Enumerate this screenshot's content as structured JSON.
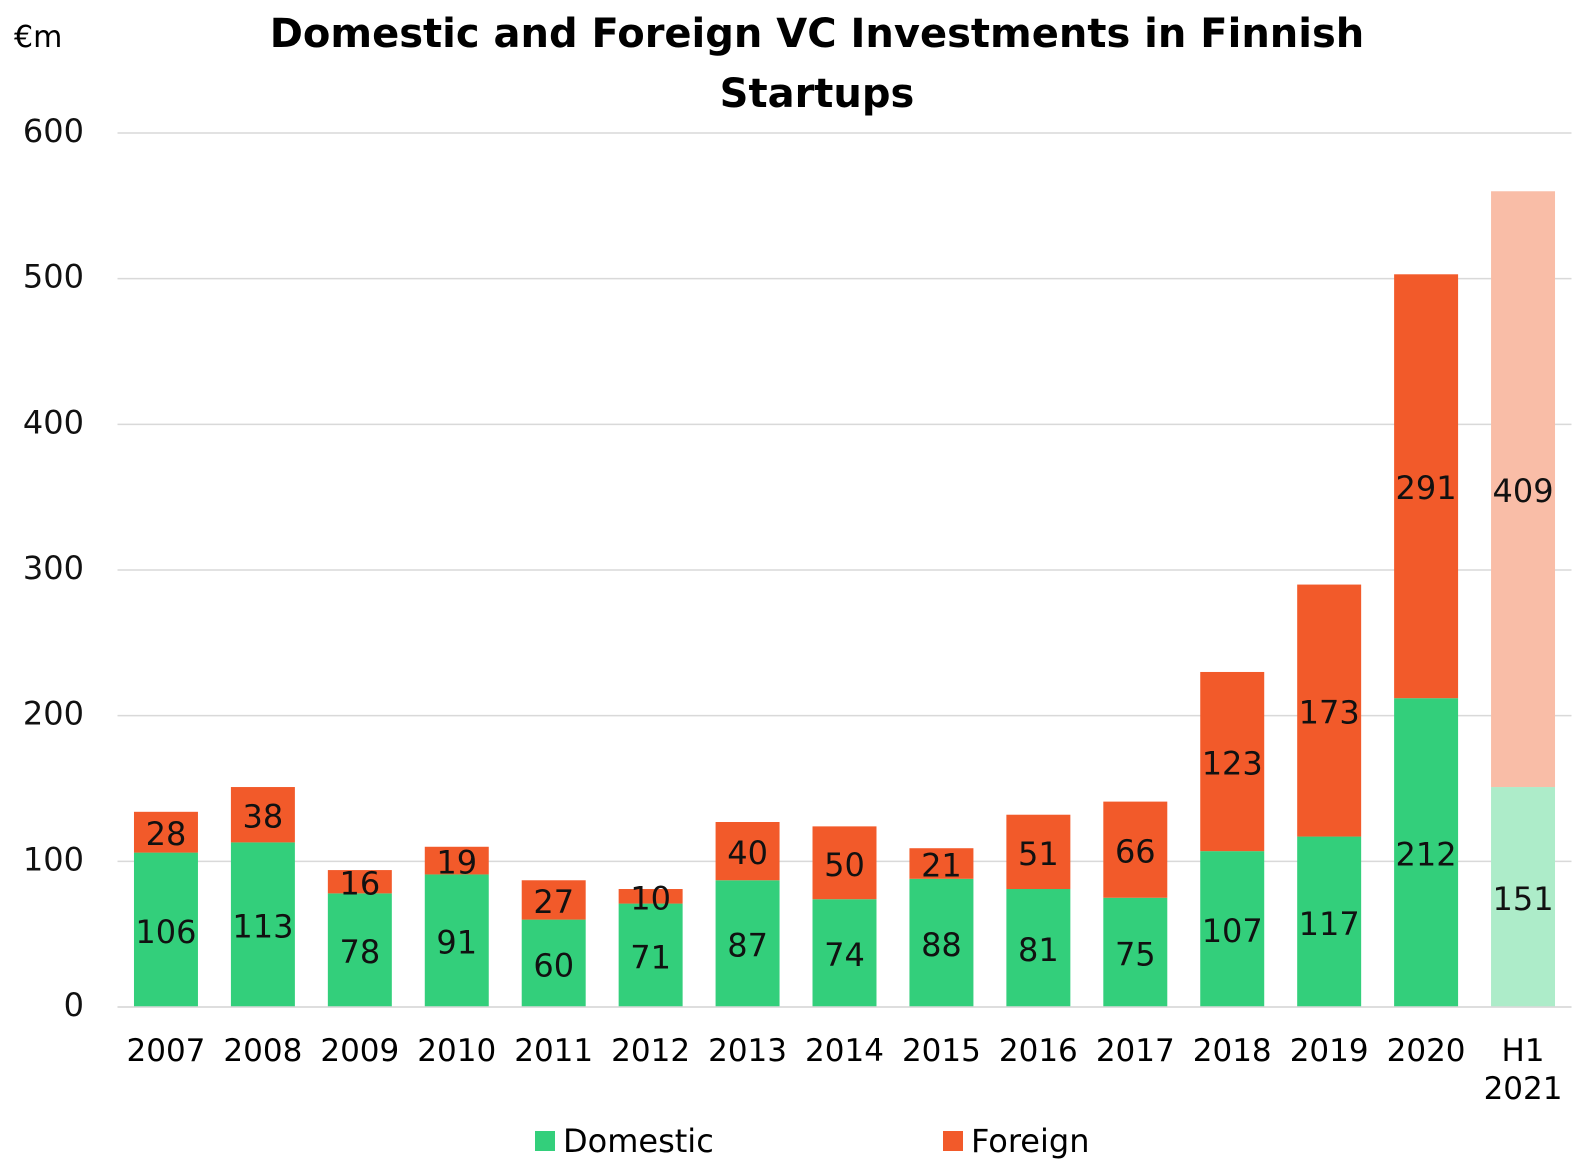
{
  "chart_data": {
    "type": "stacked_bar",
    "title": "Domestic and Foreign VC Investments in Finnish Startups",
    "y_label": "€m",
    "categories": [
      "2007",
      "2008",
      "2009",
      "2010",
      "2011",
      "2012",
      "2013",
      "2014",
      "2015",
      "2016",
      "2017",
      "2018",
      "2019",
      "2020",
      "H1 2021"
    ],
    "series": [
      {
        "name": "Domestic",
        "color": "#33cf7b",
        "colors": [
          "#33cf7b",
          "#33cf7b",
          "#33cf7b",
          "#33cf7b",
          "#33cf7b",
          "#33cf7b",
          "#33cf7b",
          "#33cf7b",
          "#33cf7b",
          "#33cf7b",
          "#33cf7b",
          "#33cf7b",
          "#33cf7b",
          "#33cf7b",
          "#adecc9"
        ],
        "values": [
          106,
          113,
          78,
          91,
          60,
          71,
          87,
          74,
          88,
          81,
          75,
          107,
          117,
          212,
          151
        ]
      },
      {
        "name": "Foreign",
        "color": "#f25a2a",
        "colors": [
          "#f25a2a",
          "#f25a2a",
          "#f25a2a",
          "#f25a2a",
          "#f25a2a",
          "#f25a2a",
          "#f25a2a",
          "#f25a2a",
          "#f25a2a",
          "#f25a2a",
          "#f25a2a",
          "#f25a2a",
          "#f25a2a",
          "#f25a2a",
          "#f9bda7"
        ],
        "values": [
          28,
          38,
          16,
          19,
          27,
          10,
          40,
          50,
          21,
          51,
          66,
          123,
          173,
          291,
          409
        ]
      }
    ],
    "ylim": [
      0,
      600
    ],
    "yticks": [
      0,
      100,
      200,
      300,
      400,
      500,
      600
    ],
    "grid": true,
    "legend": "bottom"
  }
}
